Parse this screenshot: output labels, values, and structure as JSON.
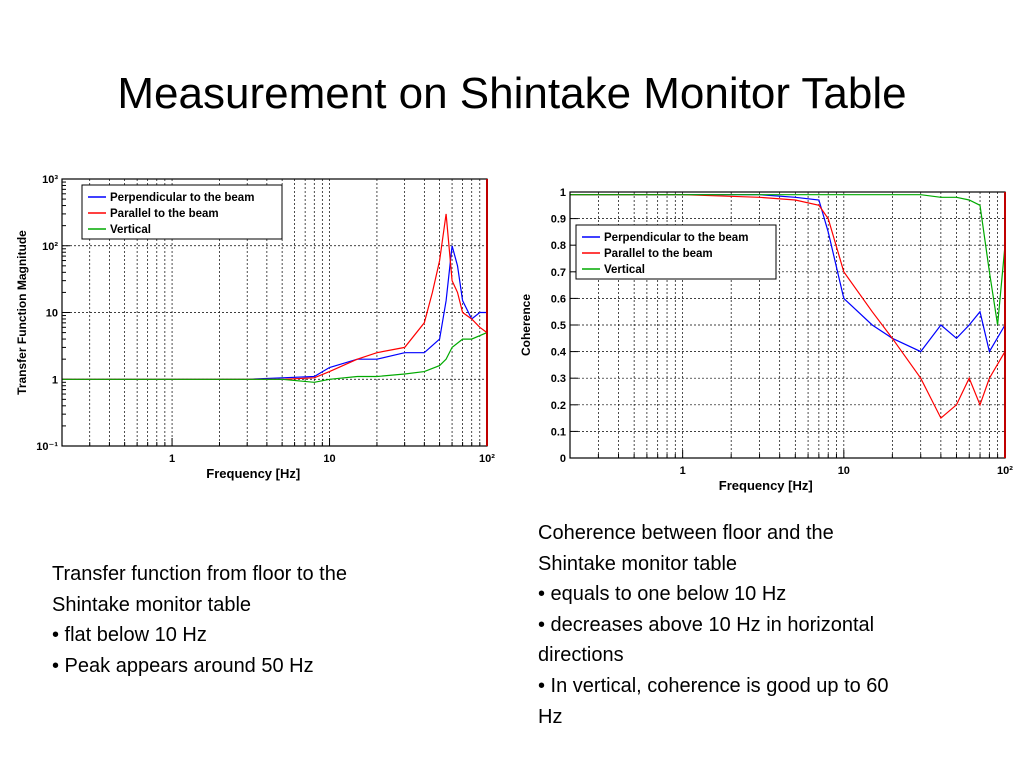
{
  "slide": {
    "title": "Measurement on Shintake Monitor Table"
  },
  "captions": {
    "left": [
      "Transfer function from floor to the",
      "Shintake monitor table",
      "• flat below 10 Hz",
      "• Peak appears around 50 Hz"
    ],
    "right": [
      "Coherence between floor and the",
      "Shintake monitor table",
      "• equals to one below 10 Hz",
      "• decreases above 10 Hz in horizontal",
      "directions",
      "• In vertical, coherence is good up to 60",
      "Hz"
    ]
  },
  "chart_data": [
    {
      "type": "line",
      "xscale": "log",
      "yscale": "log",
      "xlabel": "Frequency [Hz]",
      "ylabel": "Transfer Function Magnitude",
      "xlim": [
        0.2,
        100
      ],
      "ylim": [
        0.1,
        1000
      ],
      "x_tick_labels": [
        "1",
        "10",
        "10²"
      ],
      "y_tick_labels": [
        "10⁻¹",
        "1",
        "10",
        "10²",
        "10³"
      ],
      "grid": true,
      "legend_position": "top-left",
      "series": [
        {
          "name": "Perpendicular to the beam",
          "color": "#0000ff",
          "x": [
            0.2,
            1,
            3,
            5,
            8,
            10,
            15,
            20,
            30,
            40,
            50,
            55,
            60,
            65,
            70,
            80,
            90,
            100
          ],
          "y": [
            1,
            1,
            1,
            1.05,
            1.1,
            1.5,
            2,
            2,
            2.5,
            2.5,
            4,
            15,
            100,
            50,
            15,
            8,
            10,
            10
          ]
        },
        {
          "name": "Parallel to the beam",
          "color": "#ff0000",
          "x": [
            0.2,
            1,
            3,
            5,
            8,
            10,
            15,
            20,
            30,
            40,
            45,
            50,
            55,
            60,
            65,
            70,
            80,
            90,
            100
          ],
          "y": [
            1,
            1,
            1,
            1,
            1.05,
            1.3,
            2,
            2.5,
            3,
            7,
            20,
            60,
            300,
            30,
            20,
            10,
            8,
            6,
            5
          ]
        },
        {
          "name": "Vertical",
          "color": "#00aa00",
          "x": [
            0.2,
            1,
            3,
            5,
            8,
            10,
            15,
            20,
            30,
            40,
            50,
            55,
            60,
            70,
            80,
            100
          ],
          "y": [
            1,
            1,
            1,
            1,
            0.9,
            1,
            1.1,
            1.1,
            1.2,
            1.3,
            1.6,
            2,
            3,
            4,
            4,
            5
          ]
        }
      ]
    },
    {
      "type": "line",
      "xscale": "log",
      "xlabel": "Frequency [Hz]",
      "ylabel": "Coherence",
      "xlim": [
        0.2,
        100
      ],
      "ylim": [
        0,
        1
      ],
      "x_tick_labels": [
        "1",
        "10",
        "10²"
      ],
      "y_tick_labels": [
        "0",
        "0.1",
        "0.2",
        "0.3",
        "0.4",
        "0.5",
        "0.6",
        "0.7",
        "0.8",
        "0.9",
        "1"
      ],
      "grid": true,
      "legend_position": "upper-left",
      "series": [
        {
          "name": "Perpendicular to the beam",
          "color": "#0000ff",
          "x": [
            0.2,
            1,
            3,
            5,
            7,
            8,
            10,
            15,
            20,
            30,
            40,
            50,
            60,
            70,
            80,
            100
          ],
          "y": [
            0.99,
            0.99,
            0.99,
            0.98,
            0.97,
            0.85,
            0.6,
            0.5,
            0.45,
            0.4,
            0.5,
            0.45,
            0.5,
            0.55,
            0.4,
            0.5
          ]
        },
        {
          "name": "Parallel to the beam",
          "color": "#ff0000",
          "x": [
            0.2,
            1,
            3,
            5,
            7,
            8,
            10,
            15,
            20,
            30,
            40,
            50,
            60,
            70,
            80,
            100
          ],
          "y": [
            0.99,
            0.99,
            0.98,
            0.97,
            0.95,
            0.9,
            0.7,
            0.55,
            0.45,
            0.3,
            0.15,
            0.2,
            0.3,
            0.2,
            0.3,
            0.4
          ]
        },
        {
          "name": "Vertical",
          "color": "#00aa00",
          "x": [
            0.2,
            1,
            3,
            5,
            8,
            10,
            20,
            30,
            40,
            50,
            60,
            70,
            80,
            90,
            100
          ],
          "y": [
            0.99,
            0.99,
            0.99,
            0.99,
            0.99,
            0.99,
            0.99,
            0.99,
            0.98,
            0.98,
            0.97,
            0.95,
            0.7,
            0.5,
            0.8
          ]
        }
      ]
    }
  ]
}
